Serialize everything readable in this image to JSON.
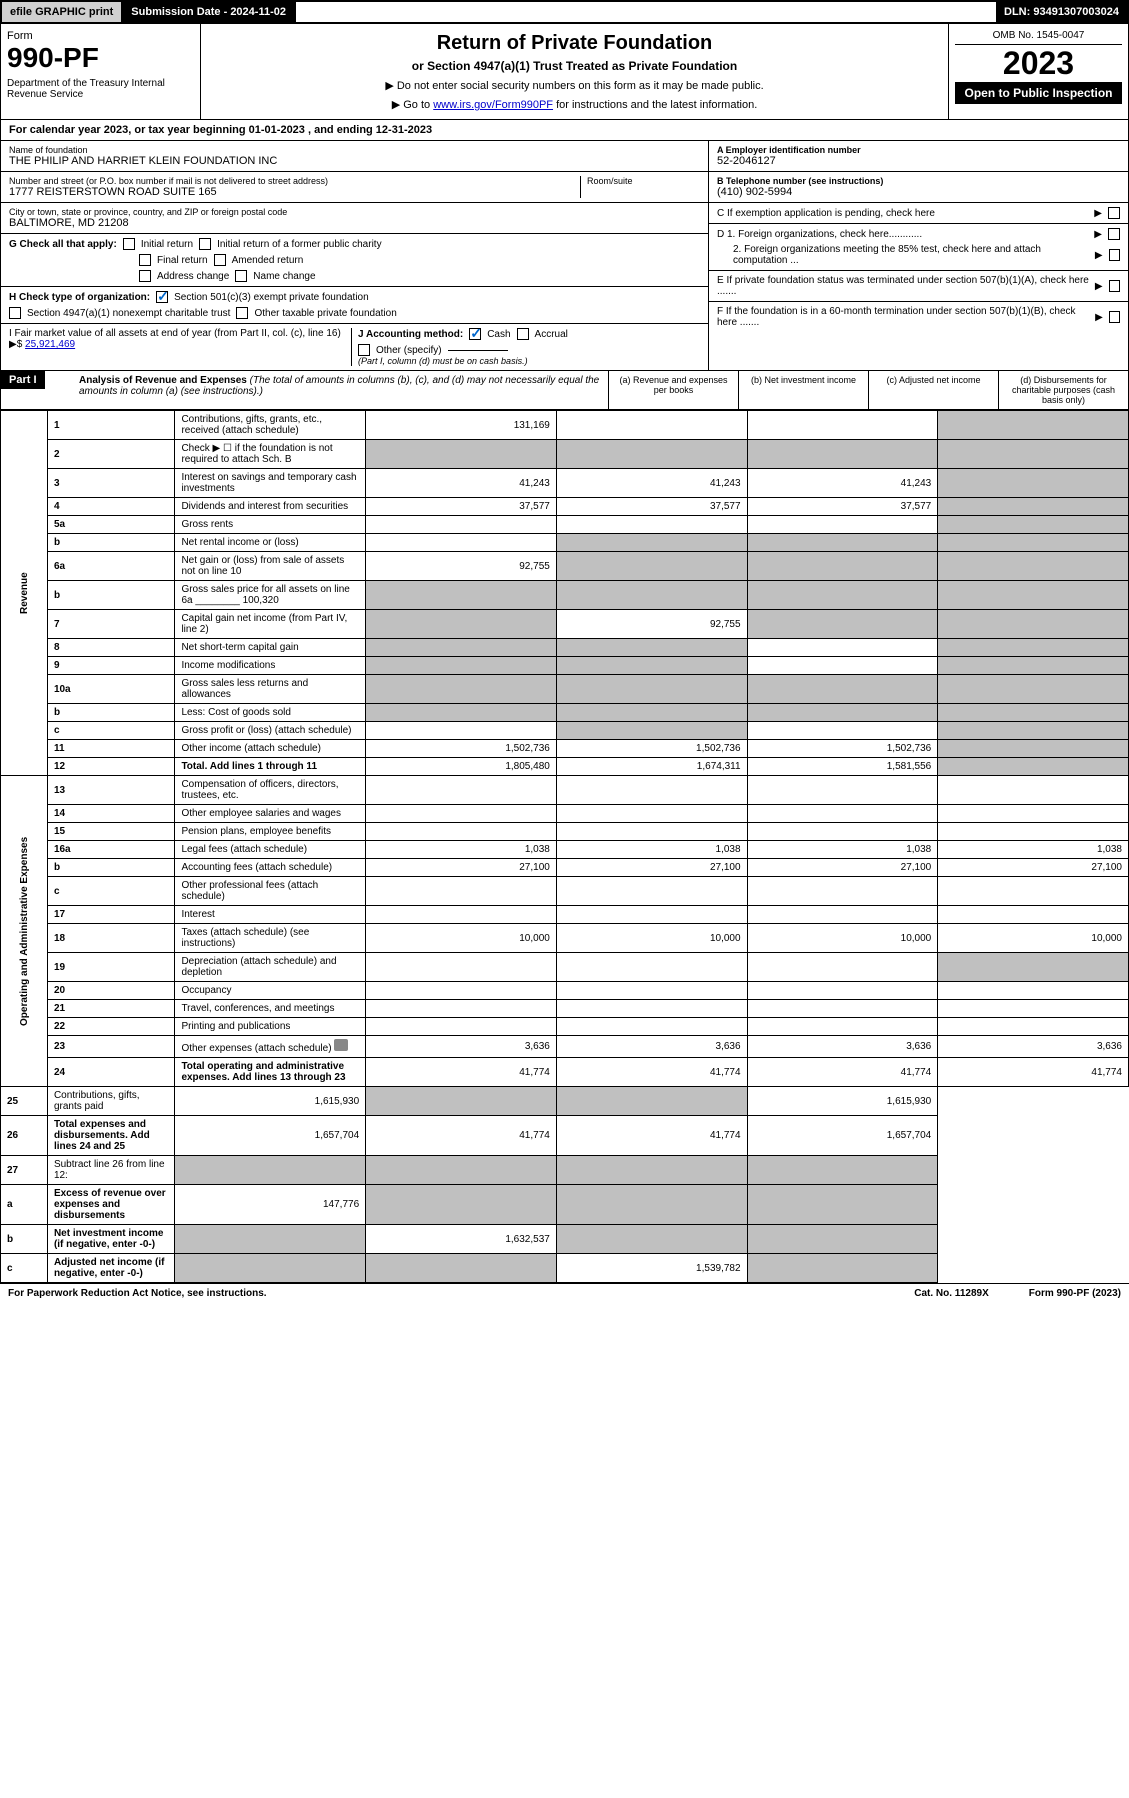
{
  "topbar": {
    "efile": "efile GRAPHIC print",
    "subdate": "Submission Date - 2024-11-02",
    "dln": "DLN: 93491307003024"
  },
  "header": {
    "form_label": "Form",
    "form_num": "990-PF",
    "dept": "Department of the Treasury\nInternal Revenue Service",
    "title": "Return of Private Foundation",
    "subtitle": "or Section 4947(a)(1) Trust Treated as Private Foundation",
    "instr1": "▶ Do not enter social security numbers on this form as it may be made public.",
    "instr2_pre": "▶ Go to ",
    "instr2_link": "www.irs.gov/Form990PF",
    "instr2_post": " for instructions and the latest information.",
    "omb": "OMB No. 1545-0047",
    "year": "2023",
    "open": "Open to Public Inspection"
  },
  "calyear": "For calendar year 2023, or tax year beginning 01-01-2023          , and ending 12-31-2023",
  "info": {
    "name_lbl": "Name of foundation",
    "name_val": "THE PHILIP AND HARRIET KLEIN FOUNDATION INC",
    "addr_lbl": "Number and street (or P.O. box number if mail is not delivered to street address)",
    "addr_val": "1777 REISTERSTOWN ROAD SUITE 165",
    "room_lbl": "Room/suite",
    "city_lbl": "City or town, state or province, country, and ZIP or foreign postal code",
    "city_val": "BALTIMORE, MD  21208",
    "ein_lbl": "A Employer identification number",
    "ein_val": "52-2046127",
    "tel_lbl": "B Telephone number (see instructions)",
    "tel_val": "(410) 902-5994",
    "c_lbl": "C If exemption application is pending, check here",
    "d1_lbl": "D 1. Foreign organizations, check here............",
    "d2_lbl": "2. Foreign organizations meeting the 85% test, check here and attach computation ...",
    "e_lbl": "E  If private foundation status was terminated under section 507(b)(1)(A), check here .......",
    "f_lbl": "F  If the foundation is in a 60-month termination under section 507(b)(1)(B), check here .......",
    "g_lbl": "G Check all that apply:",
    "g_initial": "Initial return",
    "g_initial_former": "Initial return of a former public charity",
    "g_final": "Final return",
    "g_amended": "Amended return",
    "g_addr": "Address change",
    "g_name": "Name change",
    "h_lbl": "H Check type of organization:",
    "h_501c3": "Section 501(c)(3) exempt private foundation",
    "h_4947": "Section 4947(a)(1) nonexempt charitable trust",
    "h_other_tax": "Other taxable private foundation",
    "i_lbl": "I Fair market value of all assets at end of year (from Part II, col. (c), line 16)",
    "i_val": "25,921,469",
    "j_lbl": "J Accounting method:",
    "j_cash": "Cash",
    "j_accrual": "Accrual",
    "j_other": "Other (specify)",
    "j_note": "(Part I, column (d) must be on cash basis.)"
  },
  "part1": {
    "hdr": "Part I",
    "title": "Analysis of Revenue and Expenses",
    "title_note": "(The total of amounts in columns (b), (c), and (d) may not necessarily equal the amounts in column (a) (see instructions).)",
    "col_a": "(a)   Revenue and expenses per books",
    "col_b": "(b)   Net investment income",
    "col_c": "(c)   Adjusted net income",
    "col_d": "(d)   Disbursements for charitable purposes (cash basis only)"
  },
  "sections": {
    "revenue": "Revenue",
    "opexp": "Operating and Administrative Expenses"
  },
  "lines": [
    {
      "n": "1",
      "desc": "Contributions, gifts, grants, etc., received (attach schedule)",
      "a": "131,169",
      "b": "",
      "c": "",
      "d": "",
      "d_shade": true
    },
    {
      "n": "2",
      "desc": "Check ▶ ☐ if the foundation is not required to attach Sch. B",
      "a": "",
      "b": "",
      "c": "",
      "d": "",
      "all_shade": true
    },
    {
      "n": "3",
      "desc": "Interest on savings and temporary cash investments",
      "a": "41,243",
      "b": "41,243",
      "c": "41,243",
      "d": "",
      "d_shade": true
    },
    {
      "n": "4",
      "desc": "Dividends and interest from securities",
      "a": "37,577",
      "b": "37,577",
      "c": "37,577",
      "d": "",
      "d_shade": true
    },
    {
      "n": "5a",
      "desc": "Gross rents",
      "a": "",
      "b": "",
      "c": "",
      "d": "",
      "d_shade": true
    },
    {
      "n": "b",
      "desc": "Net rental income or (loss)",
      "a": "",
      "b": "",
      "c": "",
      "d": "",
      "bcd_shade": true,
      "has_underline": true
    },
    {
      "n": "6a",
      "desc": "Net gain or (loss) from sale of assets not on line 10",
      "a": "92,755",
      "b": "",
      "c": "",
      "d": "",
      "bcd_shade": true
    },
    {
      "n": "b",
      "desc": "Gross sales price for all assets on line 6a",
      "inline_val": "100,320",
      "a": "",
      "b": "",
      "c": "",
      "d": "",
      "all_shade": true
    },
    {
      "n": "7",
      "desc": "Capital gain net income (from Part IV, line 2)",
      "a": "",
      "b": "92,755",
      "c": "",
      "d": "",
      "a_shade": true,
      "cd_shade": true
    },
    {
      "n": "8",
      "desc": "Net short-term capital gain",
      "a": "",
      "b": "",
      "c": "",
      "d": "",
      "ab_shade": true,
      "d_shade": true
    },
    {
      "n": "9",
      "desc": "Income modifications",
      "a": "",
      "b": "",
      "c": "",
      "d": "",
      "ab_shade": true,
      "d_shade": true
    },
    {
      "n": "10a",
      "desc": "Gross sales less returns and allowances",
      "a": "",
      "b": "",
      "c": "",
      "d": "",
      "all_shade": true,
      "has_underline": true
    },
    {
      "n": "b",
      "desc": "Less: Cost of goods sold",
      "a": "",
      "b": "",
      "c": "",
      "d": "",
      "all_shade": true,
      "has_underline": true
    },
    {
      "n": "c",
      "desc": "Gross profit or (loss) (attach schedule)",
      "a": "",
      "b": "",
      "c": "",
      "d": "",
      "b_shade": true,
      "d_shade": true
    },
    {
      "n": "11",
      "desc": "Other income (attach schedule)",
      "a": "1,502,736",
      "b": "1,502,736",
      "c": "1,502,736",
      "d": "",
      "d_shade": true
    },
    {
      "n": "12",
      "desc": "Total. Add lines 1 through 11",
      "a": "1,805,480",
      "b": "1,674,311",
      "c": "1,581,556",
      "d": "",
      "d_shade": true,
      "bold": true
    },
    {
      "n": "13",
      "desc": "Compensation of officers, directors, trustees, etc.",
      "a": "",
      "b": "",
      "c": "",
      "d": ""
    },
    {
      "n": "14",
      "desc": "Other employee salaries and wages",
      "a": "",
      "b": "",
      "c": "",
      "d": ""
    },
    {
      "n": "15",
      "desc": "Pension plans, employee benefits",
      "a": "",
      "b": "",
      "c": "",
      "d": ""
    },
    {
      "n": "16a",
      "desc": "Legal fees (attach schedule)",
      "a": "1,038",
      "b": "1,038",
      "c": "1,038",
      "d": "1,038"
    },
    {
      "n": "b",
      "desc": "Accounting fees (attach schedule)",
      "a": "27,100",
      "b": "27,100",
      "c": "27,100",
      "d": "27,100"
    },
    {
      "n": "c",
      "desc": "Other professional fees (attach schedule)",
      "a": "",
      "b": "",
      "c": "",
      "d": ""
    },
    {
      "n": "17",
      "desc": "Interest",
      "a": "",
      "b": "",
      "c": "",
      "d": ""
    },
    {
      "n": "18",
      "desc": "Taxes (attach schedule) (see instructions)",
      "a": "10,000",
      "b": "10,000",
      "c": "10,000",
      "d": "10,000"
    },
    {
      "n": "19",
      "desc": "Depreciation (attach schedule) and depletion",
      "a": "",
      "b": "",
      "c": "",
      "d": "",
      "d_shade": true
    },
    {
      "n": "20",
      "desc": "Occupancy",
      "a": "",
      "b": "",
      "c": "",
      "d": ""
    },
    {
      "n": "21",
      "desc": "Travel, conferences, and meetings",
      "a": "",
      "b": "",
      "c": "",
      "d": ""
    },
    {
      "n": "22",
      "desc": "Printing and publications",
      "a": "",
      "b": "",
      "c": "",
      "d": ""
    },
    {
      "n": "23",
      "desc": "Other expenses (attach schedule)",
      "a": "3,636",
      "b": "3,636",
      "c": "3,636",
      "d": "3,636",
      "has_icon": true
    },
    {
      "n": "24",
      "desc": "Total operating and administrative expenses. Add lines 13 through 23",
      "a": "41,774",
      "b": "41,774",
      "c": "41,774",
      "d": "41,774",
      "bold": true
    },
    {
      "n": "25",
      "desc": "Contributions, gifts, grants paid",
      "a": "1,615,930",
      "b": "",
      "c": "",
      "d": "1,615,930",
      "bc_shade": true
    },
    {
      "n": "26",
      "desc": "Total expenses and disbursements. Add lines 24 and 25",
      "a": "1,657,704",
      "b": "41,774",
      "c": "41,774",
      "d": "1,657,704",
      "bold": true
    },
    {
      "n": "27",
      "desc": "Subtract line 26 from line 12:",
      "a": "",
      "b": "",
      "c": "",
      "d": "",
      "all_shade": true
    },
    {
      "n": "a",
      "desc": "Excess of revenue over expenses and disbursements",
      "a": "147,776",
      "b": "",
      "c": "",
      "d": "",
      "bcd_shade": true,
      "bold": true
    },
    {
      "n": "b",
      "desc": "Net investment income (if negative, enter -0-)",
      "a": "",
      "b": "1,632,537",
      "c": "",
      "d": "",
      "a_shade": true,
      "cd_shade": true,
      "bold": true
    },
    {
      "n": "c",
      "desc": "Adjusted net income (if negative, enter -0-)",
      "a": "",
      "b": "",
      "c": "1,539,782",
      "d": "",
      "ab_shade": true,
      "d_shade": true,
      "bold": true
    }
  ],
  "footer": {
    "left": "For Paperwork Reduction Act Notice, see instructions.",
    "mid": "Cat. No. 11289X",
    "right": "Form 990-PF (2023)"
  }
}
